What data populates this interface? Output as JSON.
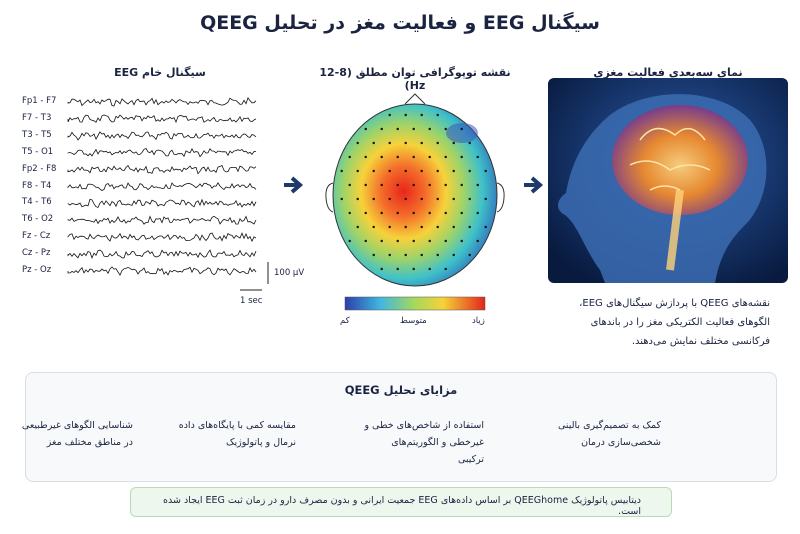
{
  "title": "سیگنال EEG و فعالیت مغز در تحلیل QEEG",
  "eeg": {
    "title": "سیگنال خام EEG",
    "channels": [
      "Fp1 - F7",
      "F7 - T3",
      "T3 - T5",
      "T5 - O1",
      "Fp2 - F8",
      "F8 - T4",
      "T4 - T6",
      "T6 - O2",
      "Fz - Cz",
      "Cz - Pz",
      "Pz - Oz"
    ],
    "amplitude_scale": "100 µV",
    "time_scale": "1 sec"
  },
  "topomap": {
    "title": "نقشه توپوگرافی توان مطلق (8-12 Hz)",
    "legend_low": "کم",
    "legend_mid": "متوسط",
    "legend_high": "زیاد"
  },
  "brain": {
    "title": "نمای سه‌بعدی فعالیت مغزی",
    "description": "نقشه‌های QEEG با پردازش سیگنال‌های EEG، الگوهای فعالیت الکتریکی مغز را در باندهای فرکانسی مختلف نمایش می‌دهند."
  },
  "benefits": {
    "title": "مزایای تحلیل QEEG",
    "items": [
      "کمک به تصمیم‌گیری بالینی شخصی‌سازی درمان",
      "استفاده از شاخص‌های خطی و غیرخطی و الگوریتم‌های ترکیبی",
      "مقایسه کمی با پایگاه‌های داده نرمال و پاتولوژیک",
      "شناسایی الگوهای غیرطبیعی در مناطق مختلف مغز"
    ]
  },
  "footer": {
    "text": "دیتابیس پاتولوژیک QEEGhome بر اساس داده‌های EEG جمعیت ایرانی و بدون مصرف دارو در زمان ثبت EEG ایجاد شده است."
  }
}
